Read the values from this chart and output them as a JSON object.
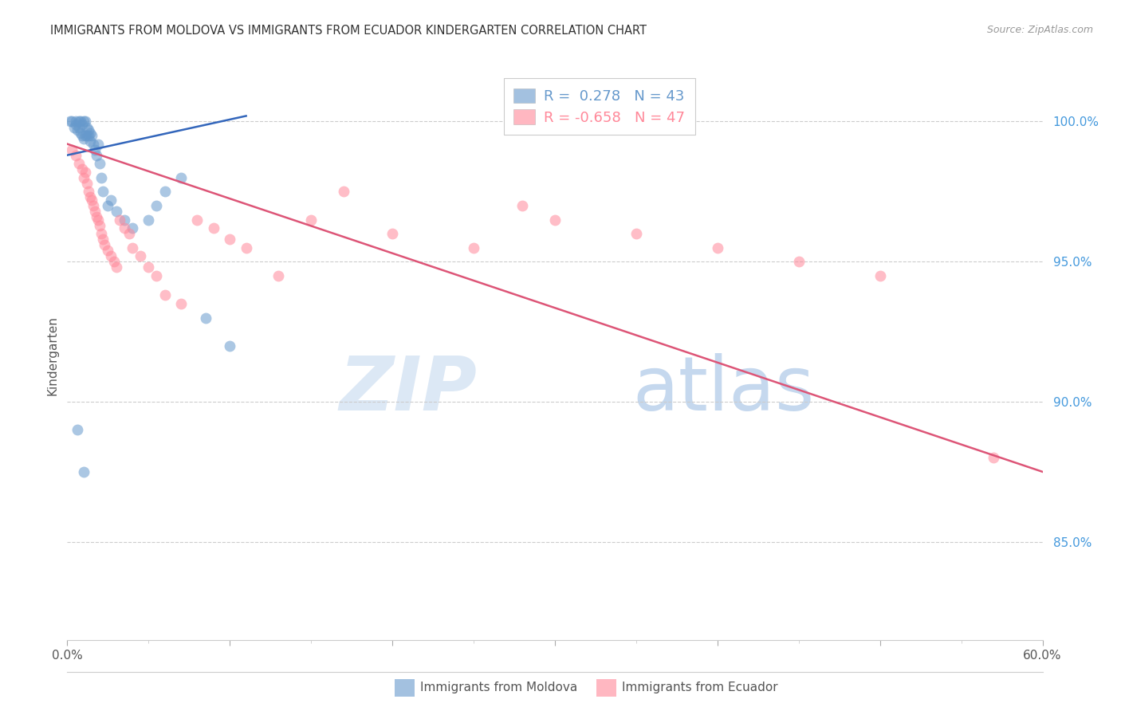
{
  "title": "IMMIGRANTS FROM MOLDOVA VS IMMIGRANTS FROM ECUADOR KINDERGARTEN CORRELATION CHART",
  "source": "Source: ZipAtlas.com",
  "ylabel": "Kindergarten",
  "right_yticks": [
    100.0,
    95.0,
    90.0,
    85.0
  ],
  "right_ytick_labels": [
    "100.0%",
    "95.0%",
    "90.0%",
    "85.0%"
  ],
  "xmin": 0.0,
  "xmax": 60.0,
  "ymin": 81.5,
  "ymax": 101.8,
  "moldova_color": "#6699CC",
  "ecuador_color": "#FF8899",
  "moldova_R": 0.278,
  "moldova_N": 43,
  "ecuador_R": -0.658,
  "ecuador_N": 47,
  "legend_label_moldova": "Immigrants from Moldova",
  "legend_label_ecuador": "Immigrants from Ecuador",
  "moldova_scatter_x": [
    0.2,
    0.3,
    0.4,
    0.5,
    0.5,
    0.6,
    0.7,
    0.7,
    0.8,
    0.8,
    0.9,
    0.9,
    1.0,
    1.0,
    1.1,
    1.1,
    1.2,
    1.2,
    1.3,
    1.3,
    1.4,
    1.4,
    1.5,
    1.6,
    1.7,
    1.8,
    1.9,
    2.0,
    2.1,
    2.2,
    2.5,
    2.7,
    3.0,
    3.5,
    4.0,
    5.0,
    5.5,
    6.0,
    7.0,
    8.5,
    10.0,
    0.6,
    1.0
  ],
  "moldova_scatter_y": [
    100.0,
    100.0,
    99.8,
    99.9,
    100.0,
    99.7,
    99.8,
    100.0,
    99.6,
    100.0,
    99.5,
    99.9,
    99.4,
    100.0,
    99.5,
    100.0,
    99.5,
    99.8,
    99.5,
    99.7,
    99.3,
    99.6,
    99.5,
    99.2,
    99.0,
    98.8,
    99.2,
    98.5,
    98.0,
    97.5,
    97.0,
    97.2,
    96.8,
    96.5,
    96.2,
    96.5,
    97.0,
    97.5,
    98.0,
    93.0,
    92.0,
    89.0,
    87.5
  ],
  "ecuador_scatter_x": [
    0.3,
    0.5,
    0.7,
    0.9,
    1.0,
    1.1,
    1.2,
    1.3,
    1.4,
    1.5,
    1.6,
    1.7,
    1.8,
    1.9,
    2.0,
    2.1,
    2.2,
    2.3,
    2.5,
    2.7,
    2.9,
    3.0,
    3.2,
    3.5,
    3.8,
    4.0,
    4.5,
    5.0,
    5.5,
    6.0,
    7.0,
    8.0,
    9.0,
    10.0,
    11.0,
    13.0,
    15.0,
    17.0,
    20.0,
    25.0,
    28.0,
    30.0,
    35.0,
    40.0,
    45.0,
    50.0,
    57.0
  ],
  "ecuador_scatter_y": [
    99.0,
    98.8,
    98.5,
    98.3,
    98.0,
    98.2,
    97.8,
    97.5,
    97.3,
    97.2,
    97.0,
    96.8,
    96.6,
    96.5,
    96.3,
    96.0,
    95.8,
    95.6,
    95.4,
    95.2,
    95.0,
    94.8,
    96.5,
    96.2,
    96.0,
    95.5,
    95.2,
    94.8,
    94.5,
    93.8,
    93.5,
    96.5,
    96.2,
    95.8,
    95.5,
    94.5,
    96.5,
    97.5,
    96.0,
    95.5,
    97.0,
    96.5,
    96.0,
    95.5,
    95.0,
    94.5,
    88.0
  ],
  "moldova_trend_x": [
    0.0,
    11.0
  ],
  "moldova_trend_y": [
    98.8,
    100.2
  ],
  "ecuador_trend_x": [
    0.0,
    60.0
  ],
  "ecuador_trend_y": [
    99.2,
    87.5
  ],
  "grid_color": "#cccccc",
  "title_color": "#333333",
  "right_axis_color": "#4499DD",
  "background_color": "#ffffff"
}
